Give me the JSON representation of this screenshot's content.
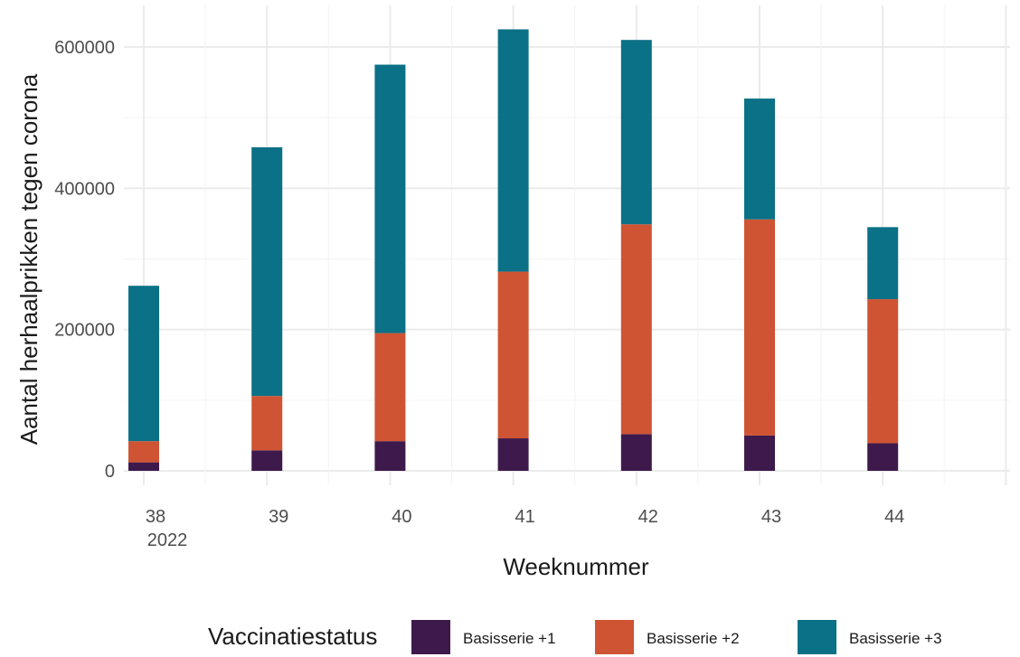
{
  "chart_data": {
    "type": "bar",
    "stacked": true,
    "categories": [
      "38",
      "39",
      "40",
      "41",
      "42",
      "43",
      "44"
    ],
    "category_sublabels": [
      "2022",
      "",
      "",
      "",
      "",
      "",
      ""
    ],
    "series": [
      {
        "name": "Basisserie +1",
        "color": "#3e1a4c",
        "values": [
          12000,
          29000,
          42000,
          46000,
          52000,
          50000,
          39000
        ]
      },
      {
        "name": "Basisserie +2",
        "color": "#cf5434",
        "values": [
          30000,
          77000,
          153000,
          236000,
          297000,
          306000,
          204000
        ]
      },
      {
        "name": "Basisserie +3",
        "color": "#0b7186",
        "values": [
          220000,
          352000,
          380000,
          343000,
          261000,
          171000,
          102000
        ]
      }
    ],
    "xlabel": "Weeknummer",
    "ylabel": "Aantal herhaalprikken tegen corona",
    "ylim": [
      0,
      600000
    ],
    "yticks": [
      0,
      200000,
      400000,
      600000
    ],
    "ytick_labels": [
      "0",
      "200000",
      "400000",
      "600000"
    ],
    "grid": true,
    "legend": {
      "title": "Vaccinatiestatus",
      "position": "bottom"
    }
  }
}
